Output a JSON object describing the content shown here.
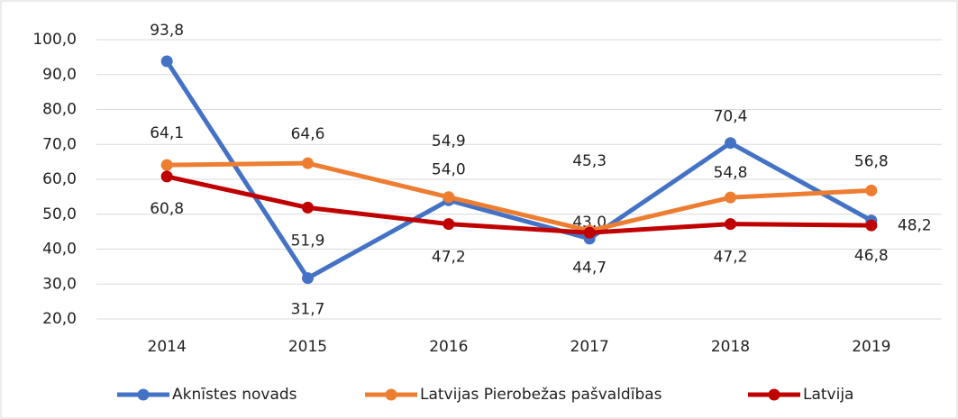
{
  "chart_data": {
    "type": "line",
    "categories": [
      "2014",
      "2015",
      "2016",
      "2017",
      "2018",
      "2019"
    ],
    "series": [
      {
        "name": "Aknīstes novads",
        "color": "#4472c4",
        "values": [
          93.8,
          31.7,
          54.0,
          43.0,
          70.4,
          48.2
        ],
        "value_labels": [
          "93,8",
          "31,7",
          "54,0",
          "43,0",
          "70,4",
          "48,2"
        ]
      },
      {
        "name": "Latvijas Pierobežas pašvaldības",
        "color": "#ed7d31",
        "values": [
          64.1,
          64.6,
          54.9,
          45.3,
          54.8,
          56.8
        ],
        "value_labels": [
          "64,1",
          "64,6",
          "54,9",
          "45,3",
          "54,8",
          "56,8"
        ]
      },
      {
        "name": "Latvija",
        "color": "#c00000",
        "values": [
          60.8,
          51.9,
          47.2,
          44.7,
          47.2,
          46.8
        ],
        "value_labels": [
          "60,8",
          "51,9",
          "47,2",
          "44,7",
          "47,2",
          "46,8"
        ]
      }
    ],
    "ylim": [
      20,
      100
    ],
    "yticks": [
      {
        "value": 20,
        "label": "20,0"
      },
      {
        "value": 30,
        "label": "30,0"
      },
      {
        "value": 40,
        "label": "40,0"
      },
      {
        "value": 50,
        "label": "50,0"
      },
      {
        "value": 60,
        "label": "60,0"
      },
      {
        "value": 70,
        "label": "70,0"
      },
      {
        "value": 80,
        "label": "80,0"
      },
      {
        "value": 90,
        "label": "90,0"
      },
      {
        "value": 100,
        "label": "100,0"
      }
    ],
    "grid": true,
    "legend": "bottom"
  }
}
